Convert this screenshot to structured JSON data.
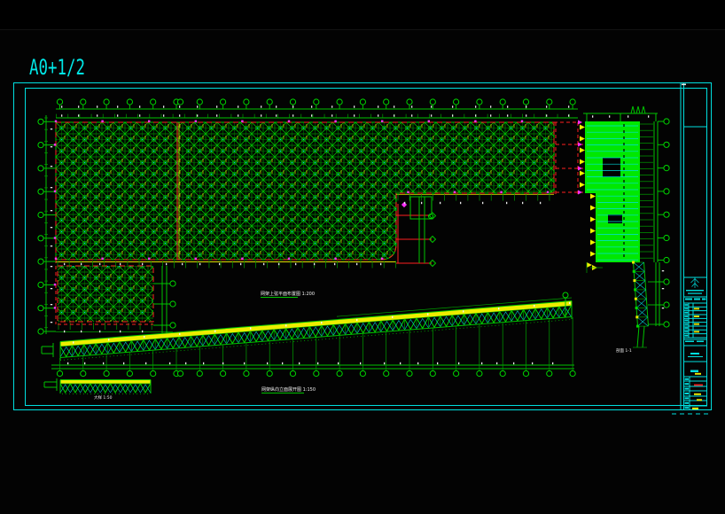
{
  "sheet": {
    "format_title": "A0+1/2"
  },
  "drawing_labels": {
    "plan_label": "网架上弦平面布置图 1:200",
    "elevation_label": "网架纵向立面展开图 1:150",
    "detail_label": "大样 1:50",
    "section_label": "剖面 1-1"
  },
  "colors": {
    "background": "#000000",
    "border_cyan": "#00dfdf",
    "grid_green": "#00c300",
    "fill_green": "#00e800",
    "hatch_green": "#00cc00",
    "dim_yellow": "#e0e000",
    "axis_red": "#ff1f1f",
    "node_magenta": "#ff30ff",
    "text_white": "#eaeaea"
  }
}
